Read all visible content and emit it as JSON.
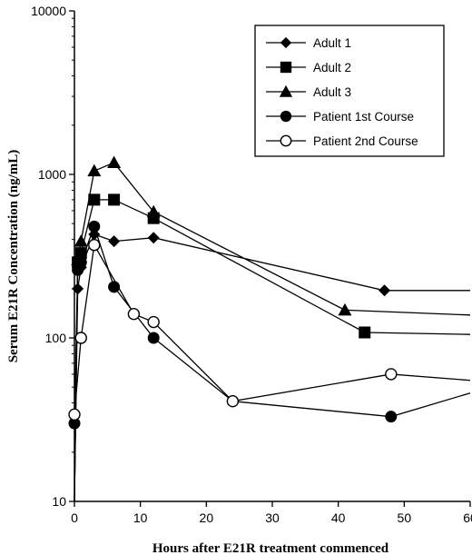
{
  "chart_data": {
    "type": "line",
    "xlabel": "Hours after E21R treatment commenced",
    "ylabel": "Serum E21R Concentration (ng/mL)",
    "xlim": [
      0,
      60
    ],
    "ylim": [
      10,
      10000
    ],
    "yscale": "log",
    "x_ticks": [
      0,
      10,
      20,
      30,
      40,
      50,
      60
    ],
    "y_ticks": [
      10,
      100,
      1000,
      10000
    ],
    "grid": false,
    "legend_position": "top-right",
    "series": [
      {
        "name": "Adult 1",
        "marker": "diamond",
        "x": [
          0,
          0.5,
          1,
          3,
          6,
          12,
          47
        ],
        "y": [
          10,
          200,
          270,
          430,
          390,
          410,
          195
        ],
        "tail_y": 195
      },
      {
        "name": "Adult 2",
        "marker": "square",
        "x": [
          0,
          0.5,
          1,
          3,
          6,
          12,
          44
        ],
        "y": [
          10,
          290,
          330,
          700,
          700,
          540,
          108
        ],
        "tail_y": 105
      },
      {
        "name": "Adult 3",
        "marker": "triangle",
        "x": [
          0,
          0.5,
          1,
          3,
          6,
          12,
          41
        ],
        "y": [
          10,
          300,
          390,
          1050,
          1180,
          590,
          148
        ],
        "tail_y": 138
      },
      {
        "name": "Patient 1st Course",
        "marker": "filled-circle",
        "x": [
          0,
          0.5,
          1,
          3,
          6,
          12,
          24,
          48
        ],
        "y": [
          30,
          260,
          290,
          480,
          205,
          100,
          41,
          33
        ],
        "tail_y": 46
      },
      {
        "name": "Patient 2nd Course",
        "marker": "open-circle",
        "x": [
          0,
          1,
          3,
          9,
          12,
          24,
          48
        ],
        "y": [
          34,
          100,
          370,
          140,
          125,
          41,
          60
        ],
        "tail_y": 55
      }
    ]
  }
}
